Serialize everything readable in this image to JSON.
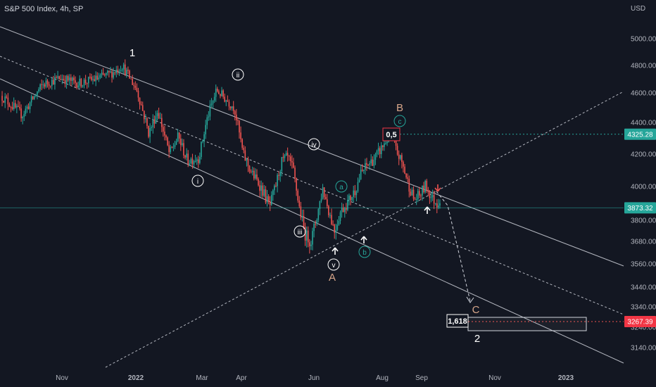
{
  "header": {
    "title": "S&P 500 Index, 4h, SP"
  },
  "chart_data": {
    "type": "candlestick",
    "y_axis": {
      "unit_label": "USD",
      "ticks": [
        5000,
        4800,
        4600,
        4400,
        4200,
        4000,
        3800,
        3680,
        3560,
        3440,
        3340,
        3240,
        3140
      ],
      "tick_labels": [
        "5000.00",
        "4800.00",
        "4600.00",
        "4400.00",
        "4200.00",
        "4000.00",
        "3800.00",
        "3680.00",
        "3560.00",
        "3440.00",
        "3340.00",
        "3240.00",
        "3140.00"
      ],
      "range": [
        3060,
        5150
      ],
      "scale": "log"
    },
    "x_axis": {
      "tick_labels": [
        "Nov",
        "2022",
        "Mar",
        "Apr",
        "Jun",
        "Aug",
        "Sep",
        "Nov",
        "2023"
      ],
      "bold": [
        false,
        true,
        false,
        false,
        false,
        false,
        false,
        false,
        true
      ]
    },
    "price_badges": [
      {
        "label": "4325.28",
        "value": 4325.28,
        "color": "#26a69a"
      },
      {
        "label": "3873.32",
        "value": 3873.32,
        "color": "#26a69a"
      },
      {
        "label": "3267.39",
        "value": 3267.39,
        "color": "#f23645"
      }
    ],
    "path": [
      [
        0,
        4580
      ],
      [
        0.035,
        4450
      ],
      [
        0.07,
        4660
      ],
      [
        0.1,
        4710
      ],
      [
        0.13,
        4670
      ],
      [
        0.16,
        4700
      ],
      [
        0.19,
        4750
      ],
      [
        0.205,
        4800
      ],
      [
        0.23,
        4620
      ],
      [
        0.25,
        4330
      ],
      [
        0.265,
        4480
      ],
      [
        0.285,
        4200
      ],
      [
        0.3,
        4310
      ],
      [
        0.315,
        4160
      ],
      [
        0.335,
        4180
      ],
      [
        0.35,
        4440
      ],
      [
        0.365,
        4620
      ],
      [
        0.38,
        4560
      ],
      [
        0.395,
        4500
      ],
      [
        0.41,
        4200
      ],
      [
        0.425,
        4080
      ],
      [
        0.44,
        4000
      ],
      [
        0.455,
        3880
      ],
      [
        0.465,
        4000
      ],
      [
        0.475,
        4150
      ],
      [
        0.485,
        4180
      ],
      [
        0.495,
        4100
      ],
      [
        0.505,
        3880
      ],
      [
        0.515,
        3720
      ],
      [
        0.525,
        3680
      ],
      [
        0.535,
        3820
      ],
      [
        0.545,
        3990
      ],
      [
        0.555,
        3860
      ],
      [
        0.565,
        3740
      ],
      [
        0.575,
        3850
      ],
      [
        0.59,
        3920
      ],
      [
        0.6,
        3980
      ],
      [
        0.61,
        4080
      ],
      [
        0.62,
        4130
      ],
      [
        0.635,
        4180
      ],
      [
        0.65,
        4270
      ],
      [
        0.66,
        4330
      ],
      [
        0.67,
        4220
      ],
      [
        0.68,
        4140
      ],
      [
        0.69,
        4020
      ],
      [
        0.7,
        3920
      ],
      [
        0.71,
        3950
      ],
      [
        0.72,
        4010
      ],
      [
        0.73,
        3930
      ],
      [
        0.74,
        3900
      ],
      [
        0.745,
        3940
      ]
    ],
    "wave_labels": [
      {
        "text": "1",
        "style": "plain",
        "color": "#ffffff"
      },
      {
        "text": "ii",
        "style": "circle",
        "color": "#ffffff"
      },
      {
        "text": "i",
        "style": "circle",
        "color": "#ffffff"
      },
      {
        "text": "iv",
        "style": "circle",
        "color": "#ffffff"
      },
      {
        "text": "iii",
        "style": "circle",
        "color": "#ffffff"
      },
      {
        "text": "v",
        "style": "circle",
        "color": "#ffffff"
      },
      {
        "text": "A",
        "style": "plain",
        "color": "#d7a68a"
      },
      {
        "text": "a",
        "style": "circle",
        "color": "#26a69a"
      },
      {
        "text": "b",
        "style": "circle",
        "color": "#26a69a"
      },
      {
        "text": "c",
        "style": "circle",
        "color": "#26a69a"
      },
      {
        "text": "B",
        "style": "plain",
        "color": "#d7a68a"
      },
      {
        "text": "C",
        "style": "plain",
        "color": "#d7a68a"
      },
      {
        "text": "2",
        "style": "plain",
        "color": "#ffffff"
      }
    ],
    "fib_labels": [
      {
        "text": "0,5",
        "color": "#ffffff",
        "border": "#f23645"
      },
      {
        "text": "1,618",
        "color": "#ffffff",
        "border": "#ffffff"
      }
    ],
    "colors": {
      "up": "#26a69a",
      "down": "#ef5350",
      "background": "#131722",
      "axis_text": "#b2b5be"
    },
    "grid": false
  }
}
